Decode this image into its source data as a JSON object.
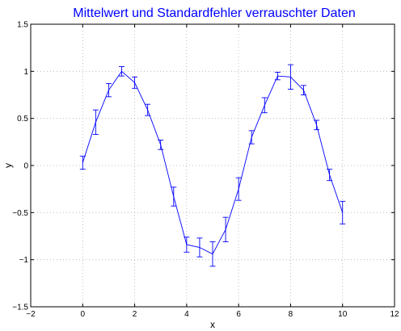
{
  "chart_data": {
    "type": "line",
    "title": "Mittelwert und Standardfehler verrauschter Daten",
    "xlabel": "x",
    "ylabel": "y",
    "xlim": [
      -2,
      12
    ],
    "ylim": [
      -1.5,
      1.5
    ],
    "xticks": [
      -2,
      0,
      2,
      4,
      6,
      8,
      10,
      12
    ],
    "yticks": [
      -1.5,
      -1,
      -0.5,
      0,
      0.5,
      1,
      1.5
    ],
    "xtick_labels": [
      "−2",
      "0",
      "2",
      "4",
      "6",
      "8",
      "10",
      "12"
    ],
    "ytick_labels": [
      "−1.5",
      "−1",
      "−0.5",
      "0",
      "0.5",
      "1",
      "1.5"
    ],
    "grid": true,
    "colors": {
      "series": "#0000ff",
      "title": "#0000ff",
      "grid": "#b0b0b0",
      "axis": "#000000"
    },
    "series": [
      {
        "x": [
          0,
          0.5,
          1,
          1.5,
          2,
          2.5,
          3,
          3.5,
          4,
          4.5,
          5,
          5.5,
          6,
          6.5,
          7,
          7.5,
          8,
          8.5,
          9,
          9.5,
          10
        ],
        "y": [
          0.03,
          0.46,
          0.8,
          1.0,
          0.88,
          0.59,
          0.22,
          -0.33,
          -0.84,
          -0.87,
          -0.94,
          -0.68,
          -0.25,
          0.3,
          0.64,
          0.95,
          0.94,
          0.8,
          0.43,
          -0.1,
          -0.5
        ],
        "err": [
          0.07,
          0.13,
          0.07,
          0.05,
          0.06,
          0.06,
          0.05,
          0.1,
          0.08,
          0.1,
          0.13,
          0.13,
          0.12,
          0.07,
          0.08,
          0.04,
          0.13,
          0.05,
          0.05,
          0.06,
          0.12
        ]
      }
    ]
  }
}
